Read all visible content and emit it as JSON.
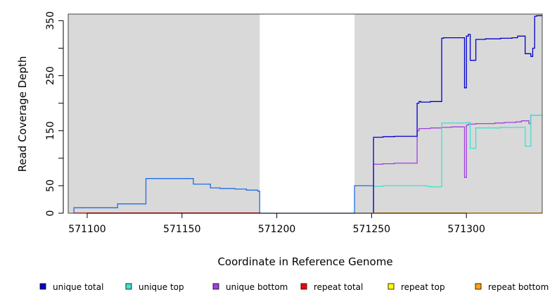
{
  "chart_data": {
    "type": "line",
    "title": "",
    "xlabel": "Coordinate in Reference Genome",
    "ylabel": "Read Coverage Depth",
    "xlim": [
      571090,
      571340
    ],
    "ylim": [
      0,
      362
    ],
    "x_ticks": [
      571100,
      571150,
      571200,
      571250,
      571300
    ],
    "y_ticks": [
      0,
      50,
      150,
      250,
      350
    ],
    "y_minor_ticks": [
      100,
      200,
      300
    ],
    "shaded_regions": [
      {
        "x0": 571090,
        "x1": 571191
      },
      {
        "x0": 571241,
        "x1": 571340
      }
    ],
    "colors": {
      "shade": "#d9d9d9",
      "unique_total": "#0000cd",
      "unique_top": "#40e0d0",
      "unique_bottom": "#a040e0",
      "repeat_total": "#ff0000",
      "repeat_top": "#ffff00",
      "repeat_bottom": "#ffa500",
      "combined_total": "#1e6ee6"
    },
    "legend_position": "bottom",
    "legend": [
      {
        "label": "unique total",
        "color": "#0000cd"
      },
      {
        "label": "unique top",
        "color": "#40e0d0"
      },
      {
        "label": "unique bottom",
        "color": "#a040e0"
      },
      {
        "label": "repeat total",
        "color": "#ff0000"
      },
      {
        "label": "repeat top",
        "color": "#ffff00"
      },
      {
        "label": "repeat bottom",
        "color": "#ffa500"
      }
    ],
    "series": [
      {
        "key": "combined_total",
        "color": "#1e6ee6",
        "points": [
          [
            571093,
            0
          ],
          [
            571093,
            10
          ],
          [
            571116,
            10
          ],
          [
            571116,
            17
          ],
          [
            571131,
            17
          ],
          [
            571131,
            63
          ],
          [
            571156,
            63
          ],
          [
            571156,
            53
          ],
          [
            571165,
            53
          ],
          [
            571165,
            46
          ],
          [
            571170,
            46
          ],
          [
            571170,
            45
          ],
          [
            571178,
            45
          ],
          [
            571178,
            44
          ],
          [
            571184,
            44
          ],
          [
            571184,
            42
          ],
          [
            571190,
            42
          ],
          [
            571190,
            40
          ],
          [
            571191,
            40
          ],
          [
            571191,
            0
          ],
          [
            571241,
            0
          ],
          [
            571241,
            50
          ],
          [
            571251,
            50
          ]
        ]
      },
      {
        "key": "unique_bottom",
        "color": "#a040e0",
        "points": [
          [
            571251,
            0
          ],
          [
            571251,
            89
          ],
          [
            571256,
            89
          ],
          [
            571256,
            90
          ],
          [
            571262,
            90
          ],
          [
            571262,
            91
          ],
          [
            571274,
            91
          ],
          [
            571274,
            150
          ],
          [
            571275,
            150
          ],
          [
            571275,
            154
          ],
          [
            571281,
            154
          ],
          [
            571281,
            155
          ],
          [
            571287,
            155
          ],
          [
            571287,
            156
          ],
          [
            571292,
            156
          ],
          [
            571292,
            157
          ],
          [
            571299,
            157
          ],
          [
            571299,
            65
          ],
          [
            571300,
            65
          ],
          [
            571300,
            160
          ],
          [
            571301,
            160
          ],
          [
            571301,
            162
          ],
          [
            571305,
            162
          ],
          [
            571305,
            163
          ],
          [
            571315,
            163
          ],
          [
            571315,
            164
          ],
          [
            571320,
            164
          ],
          [
            571320,
            165
          ],
          [
            571326,
            165
          ],
          [
            571326,
            166
          ],
          [
            571329,
            166
          ],
          [
            571329,
            168
          ],
          [
            571333,
            168
          ],
          [
            571333,
            163
          ],
          [
            571334,
            163
          ],
          [
            571334,
            178
          ],
          [
            571340,
            178
          ]
        ]
      },
      {
        "key": "unique_top",
        "color": "#40e0d0",
        "points": [
          [
            571251,
            0
          ],
          [
            571251,
            49
          ],
          [
            571256,
            49
          ],
          [
            571256,
            50
          ],
          [
            571266,
            50
          ],
          [
            571266,
            50
          ],
          [
            571279,
            50
          ],
          [
            571279,
            49
          ],
          [
            571281,
            49
          ],
          [
            571281,
            48
          ],
          [
            571287,
            48
          ],
          [
            571287,
            164
          ],
          [
            571300,
            164
          ],
          [
            571300,
            165
          ],
          [
            571302,
            165
          ],
          [
            571302,
            118
          ],
          [
            571305,
            118
          ],
          [
            571305,
            155
          ],
          [
            571318,
            155
          ],
          [
            571318,
            156
          ],
          [
            571331,
            156
          ],
          [
            571331,
            122
          ],
          [
            571334,
            122
          ],
          [
            571334,
            178
          ],
          [
            571340,
            178
          ]
        ]
      },
      {
        "key": "unique_total",
        "color": "#0000cd",
        "points": [
          [
            571251,
            0
          ],
          [
            571251,
            138
          ],
          [
            571256,
            138
          ],
          [
            571256,
            139
          ],
          [
            571262,
            139
          ],
          [
            571262,
            140
          ],
          [
            571274,
            140
          ],
          [
            571274,
            200
          ],
          [
            571275,
            200
          ],
          [
            571275,
            203
          ],
          [
            571276,
            203
          ],
          [
            571276,
            202
          ],
          [
            571281,
            202
          ],
          [
            571281,
            203
          ],
          [
            571287,
            203
          ],
          [
            571287,
            318
          ],
          [
            571288,
            318
          ],
          [
            571288,
            319
          ],
          [
            571299,
            319
          ],
          [
            571299,
            228
          ],
          [
            571300,
            228
          ],
          [
            571300,
            322
          ],
          [
            571301,
            322
          ],
          [
            571301,
            325
          ],
          [
            571302,
            325
          ],
          [
            571302,
            321
          ],
          [
            571302,
            321
          ],
          [
            571302,
            278
          ],
          [
            571305,
            278
          ],
          [
            571305,
            316
          ],
          [
            571310,
            316
          ],
          [
            571310,
            317
          ],
          [
            571318,
            317
          ],
          [
            571318,
            318
          ],
          [
            571324,
            318
          ],
          [
            571324,
            319
          ],
          [
            571327,
            319
          ],
          [
            571327,
            322
          ],
          [
            571331,
            322
          ],
          [
            571331,
            290
          ],
          [
            571334,
            290
          ],
          [
            571334,
            285
          ],
          [
            571335,
            285
          ],
          [
            571335,
            300
          ],
          [
            571336,
            300
          ],
          [
            571336,
            358
          ],
          [
            571337,
            358
          ],
          [
            571337,
            359
          ],
          [
            571340,
            359
          ]
        ]
      },
      {
        "key": "repeat_bottom",
        "color": "#ffa500",
        "points": [
          [
            571251,
            0.5
          ],
          [
            571340,
            0.5
          ]
        ]
      },
      {
        "key": "repeat_total",
        "color": "#ff0000",
        "points": [
          [
            571093,
            0.5
          ],
          [
            571191,
            0.5
          ]
        ]
      }
    ]
  }
}
